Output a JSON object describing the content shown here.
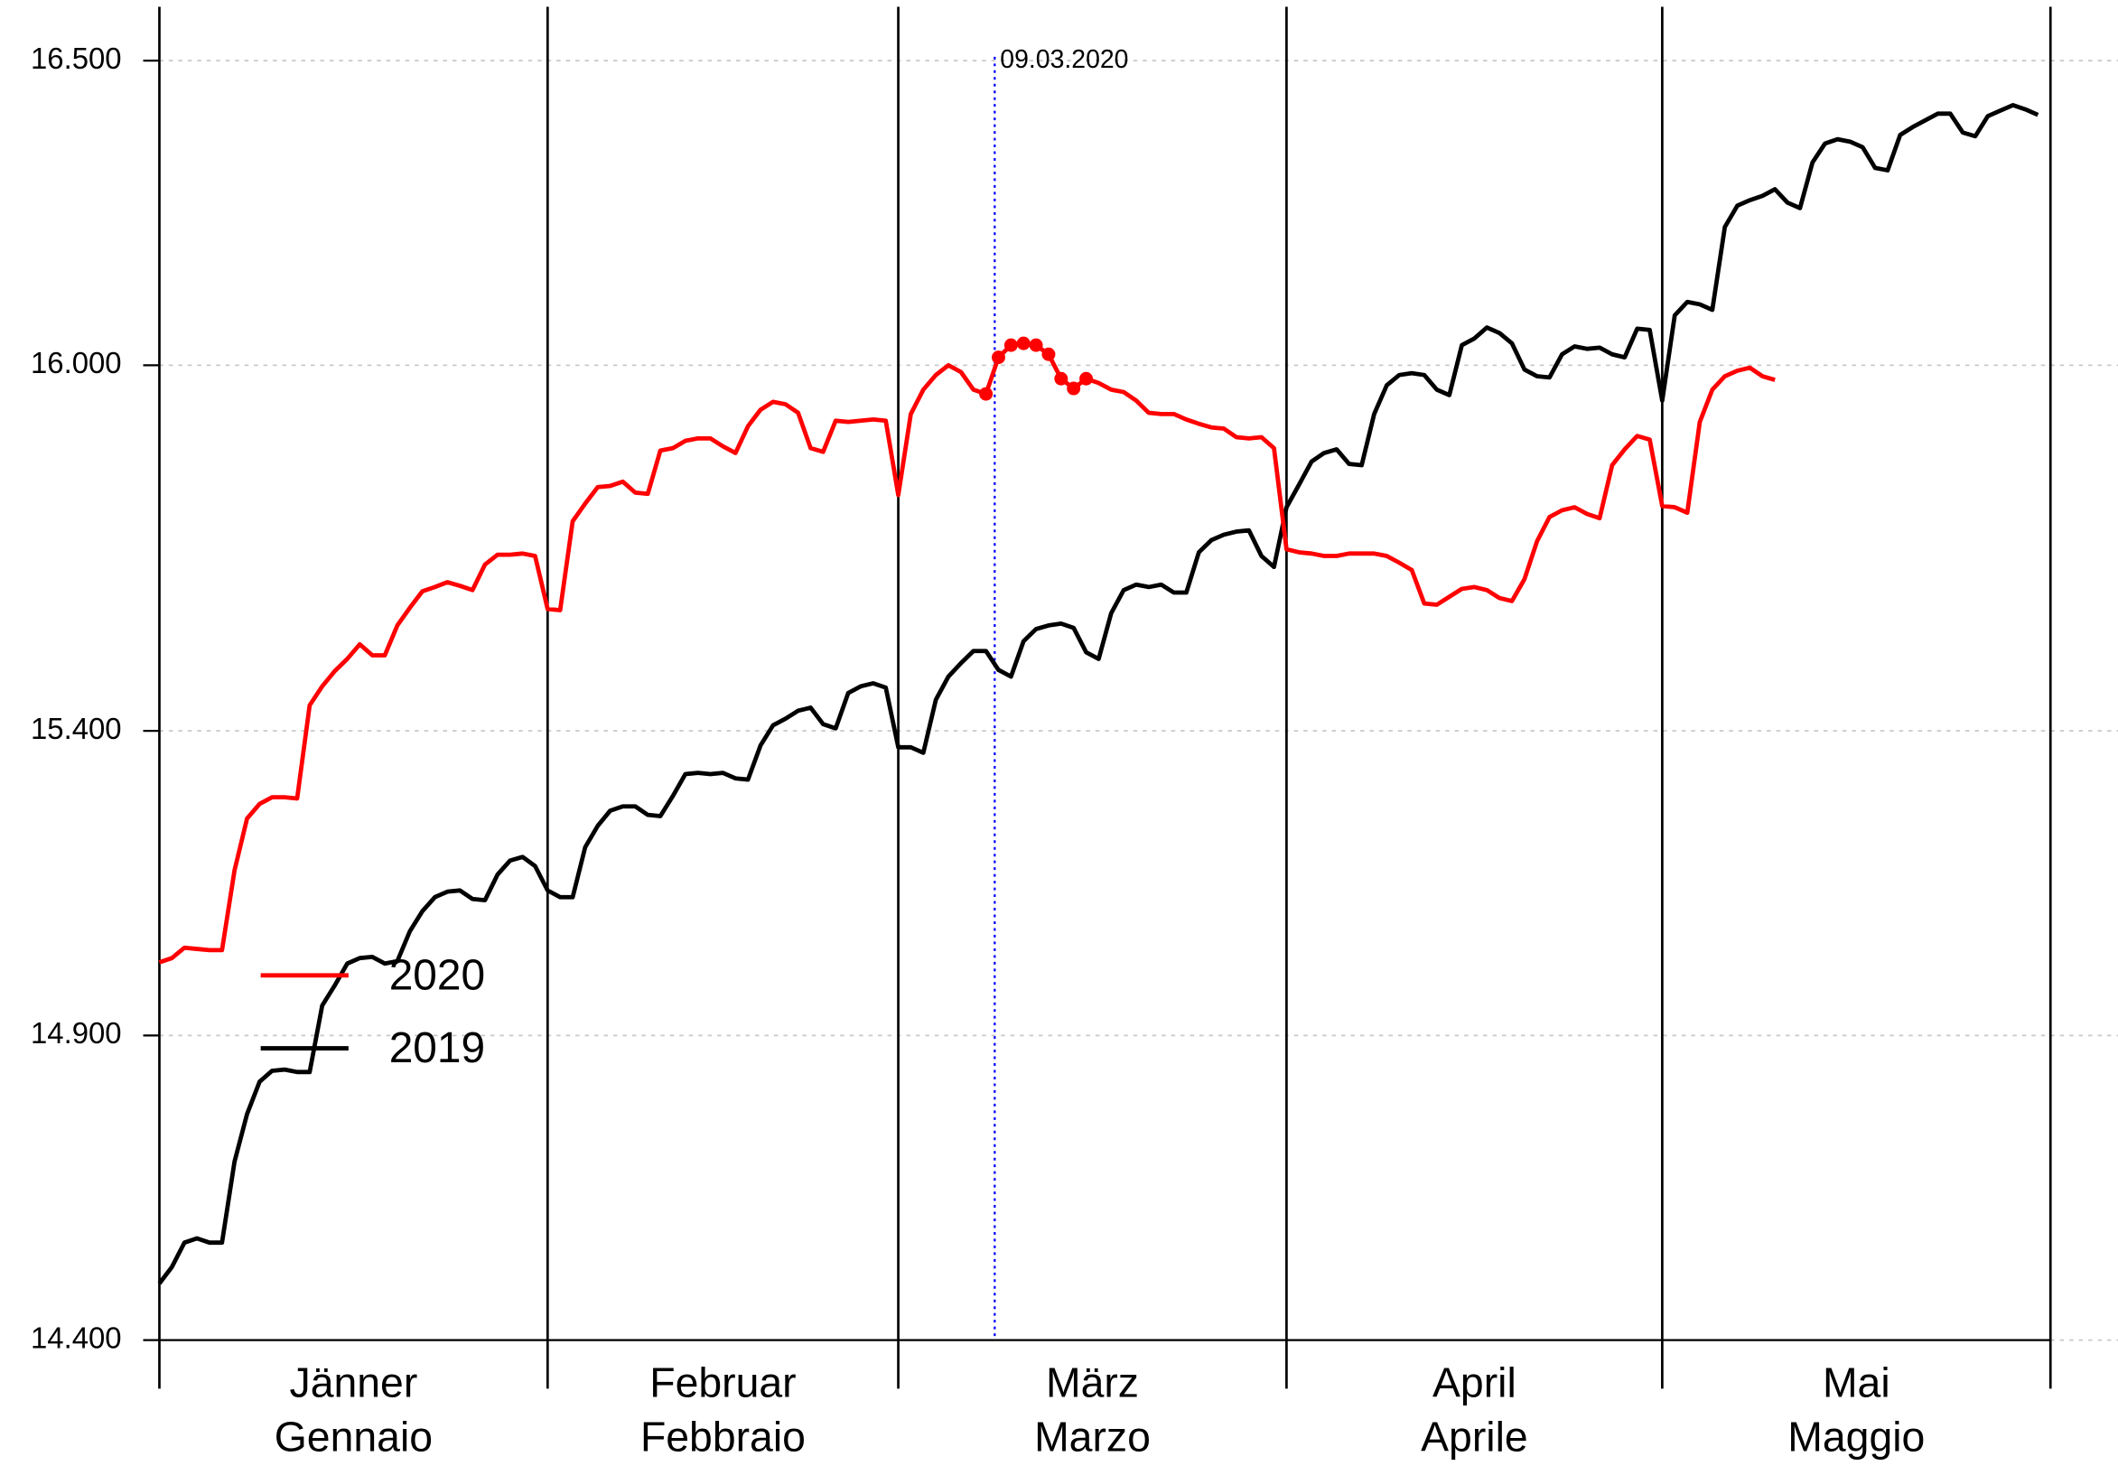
{
  "chart_data": {
    "type": "line",
    "xlim": [
      0,
      151
    ],
    "ylim": [
      14400,
      16584
    ],
    "yticks": [
      {
        "value": 14400,
        "label": "14.400"
      },
      {
        "value": 14900,
        "label": "14.900"
      },
      {
        "value": 15400,
        "label": "15.400"
      },
      {
        "value": 16000,
        "label": "16.000"
      },
      {
        "value": 16500,
        "label": "16.500"
      }
    ],
    "grid": true,
    "month_edges": [
      0,
      31,
      59,
      90,
      120,
      151
    ],
    "months": [
      [
        "Jänner",
        "Gennaio"
      ],
      [
        "Februar",
        "Febbraio"
      ],
      [
        "März",
        "Marzo"
      ],
      [
        "April",
        "Aprile"
      ],
      [
        "Mai",
        "Maggio"
      ]
    ],
    "legend": "left",
    "annotation": {
      "text": "09.03.2020",
      "x": 66.7,
      "color": "#0000ff"
    },
    "x": [
      0,
      1,
      2,
      3,
      4,
      5,
      6,
      7,
      8,
      9,
      10,
      11,
      12,
      13,
      14,
      15,
      16,
      17,
      18,
      19,
      20,
      21,
      22,
      23,
      24,
      25,
      26,
      27,
      28,
      29,
      30,
      31,
      32,
      33,
      34,
      35,
      36,
      37,
      38,
      39,
      40,
      41,
      42,
      43,
      44,
      45,
      46,
      47,
      48,
      49,
      50,
      51,
      52,
      53,
      54,
      55,
      56,
      57,
      58,
      59,
      60,
      61,
      62,
      63,
      64,
      65,
      66,
      67,
      68,
      69,
      70,
      71,
      72,
      73,
      74,
      75,
      76,
      77,
      78,
      79,
      80,
      81,
      82,
      83,
      84,
      85,
      86,
      87,
      88,
      89,
      90,
      91,
      92,
      93,
      94,
      95,
      96,
      97,
      98,
      99,
      100,
      101,
      102,
      103,
      104,
      105,
      106,
      107,
      108,
      109,
      110,
      111,
      112,
      113,
      114,
      115,
      116,
      117,
      118,
      119,
      120,
      121,
      122,
      123,
      124,
      125,
      126,
      127,
      128,
      129,
      130,
      131,
      132,
      133,
      134,
      135,
      136,
      137,
      138,
      139,
      140,
      141,
      142,
      143,
      144,
      145,
      146,
      147,
      148,
      149,
      150
    ],
    "series": [
      {
        "name": "2020",
        "color": "#ff0000",
        "markers": [
          66,
          67,
          68,
          69,
          70,
          71,
          72,
          73,
          74
        ],
        "values": [
          15020,
          15027,
          15044,
          15042,
          15040,
          15040,
          15171,
          15256,
          15280,
          15291,
          15291,
          15289,
          15442,
          15473,
          15498,
          15518,
          15542,
          15524,
          15524,
          15573,
          15602,
          15629,
          15636,
          15644,
          15638,
          15631,
          15673,
          15689,
          15689,
          15691,
          15687,
          15600,
          15598,
          15744,
          15773,
          15800,
          15802,
          15809,
          15791,
          15789,
          15860,
          15864,
          15876,
          15880,
          15880,
          15867,
          15856,
          15900,
          15927,
          15940,
          15936,
          15922,
          15864,
          15858,
          15909,
          15907,
          15909,
          15911,
          15909,
          15787,
          15920,
          15960,
          15984,
          16000,
          15989,
          15960,
          15953,
          16013,
          16033,
          16036,
          16033,
          16018,
          15978,
          15962,
          15978,
          15971,
          15960,
          15956,
          15942,
          15922,
          15920,
          15920,
          15911,
          15904,
          15898,
          15896,
          15882,
          15880,
          15882,
          15864,
          15698,
          15693,
          15691,
          15687,
          15687,
          15691,
          15691,
          15691,
          15687,
          15676,
          15664,
          15609,
          15607,
          15620,
          15633,
          15636,
          15631,
          15618,
          15613,
          15649,
          15711,
          15751,
          15762,
          15767,
          15756,
          15749,
          15836,
          15862,
          15884,
          15878,
          15769,
          15767,
          15758,
          15907,
          15960,
          15982,
          15991,
          15996,
          15982,
          15976,
          null,
          null,
          null,
          null,
          null,
          null,
          null,
          null,
          null,
          null,
          null,
          null,
          null,
          null,
          null,
          null,
          null,
          null,
          null,
          null,
          null
        ]
      },
      {
        "name": "2019",
        "color": "#000000",
        "values": [
          14493,
          14520,
          14560,
          14567,
          14560,
          14560,
          14693,
          14771,
          14824,
          14842,
          14844,
          14840,
          14840,
          14949,
          14982,
          15018,
          15027,
          15029,
          15018,
          15022,
          15071,
          15104,
          15127,
          15136,
          15138,
          15124,
          15122,
          15164,
          15187,
          15193,
          15178,
          15138,
          15127,
          15127,
          15209,
          15244,
          15269,
          15276,
          15276,
          15262,
          15260,
          15293,
          15329,
          15331,
          15329,
          15331,
          15322,
          15320,
          15376,
          15409,
          15420,
          15433,
          15438,
          15411,
          15404,
          15462,
          15473,
          15478,
          15471,
          15373,
          15373,
          15364,
          15451,
          15489,
          15511,
          15531,
          15531,
          15500,
          15489,
          15547,
          15567,
          15573,
          15576,
          15569,
          15529,
          15518,
          15593,
          15631,
          15640,
          15636,
          15640,
          15627,
          15627,
          15693,
          15713,
          15722,
          15727,
          15729,
          15687,
          15669,
          15767,
          15804,
          15842,
          15856,
          15862,
          15838,
          15836,
          15920,
          15967,
          15984,
          15987,
          15984,
          15960,
          15951,
          16033,
          16044,
          16062,
          16053,
          16036,
          15993,
          15982,
          15980,
          16018,
          16031,
          16027,
          16029,
          16018,
          16013,
          16060,
          16058,
          15942,
          16082,
          16104,
          16100,
          16091,
          16227,
          16262,
          16271,
          16278,
          16289,
          16267,
          16258,
          16333,
          16364,
          16371,
          16367,
          16358,
          16324,
          16320,
          16378,
          16391,
          16402,
          16413,
          16413,
          16382,
          16376,
          16409,
          16418,
          16427,
          16420,
          16411
        ]
      }
    ]
  }
}
